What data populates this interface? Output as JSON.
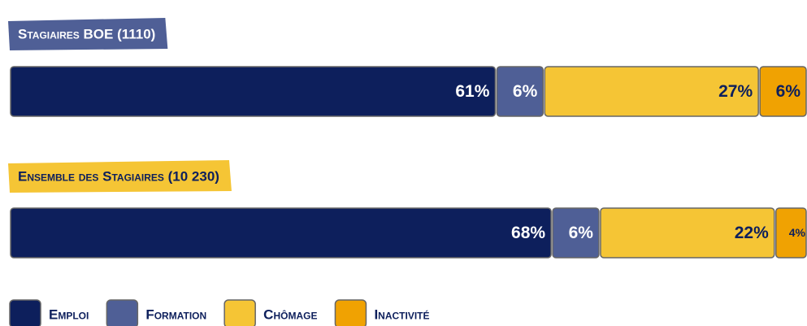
{
  "chart_data": {
    "type": "stacked-bar",
    "categories": [
      "Stagiaires BOE (1110)",
      "Ensemble des Stagiaires (10 230)"
    ],
    "series": [
      {
        "name": "Emploi",
        "color": "#0d1f5c",
        "values": [
          61,
          68
        ],
        "value_labels": [
          "61%",
          "68%"
        ]
      },
      {
        "name": "Formation",
        "color": "#4f5f96",
        "values": [
          6,
          6
        ],
        "value_labels": [
          "6%",
          "6%"
        ]
      },
      {
        "name": "Chômage",
        "color": "#f5c535",
        "values": [
          27,
          22
        ],
        "value_labels": [
          "27%",
          "22%"
        ]
      },
      {
        "name": "Inactivité",
        "color": "#f0a202",
        "values": [
          6,
          4
        ],
        "value_labels": [
          "6%",
          "4%"
        ]
      }
    ],
    "xlim": [
      0,
      100
    ]
  }
}
